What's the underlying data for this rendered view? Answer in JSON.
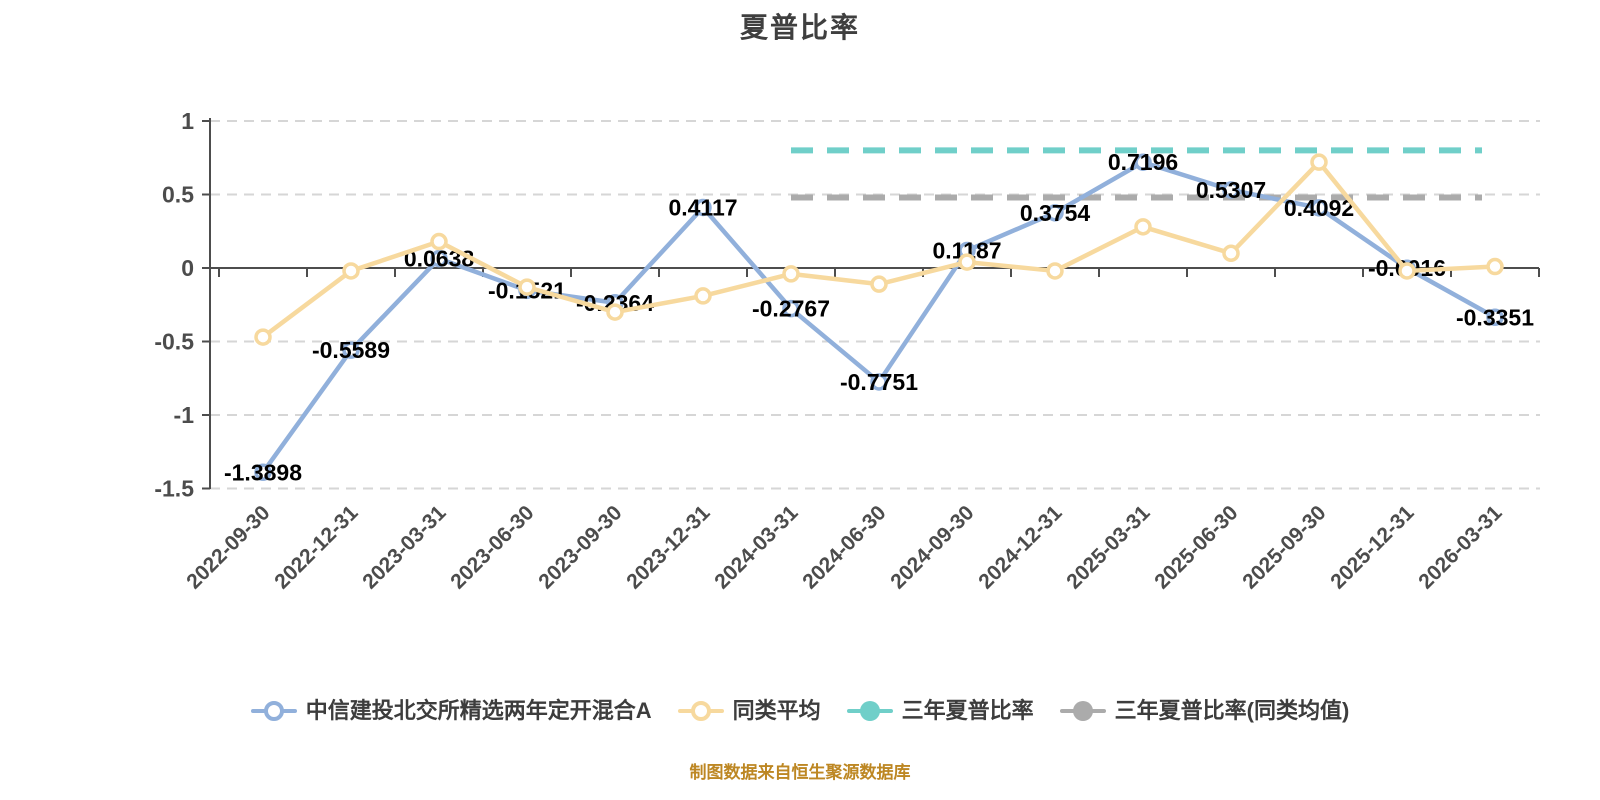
{
  "title": "夏普比率",
  "footer": "制图数据来自恒生聚源数据库",
  "colors": {
    "fund_line": "#91b0db",
    "peer_line": "#f7d99e",
    "three_year_line": "#70cfc9",
    "three_year_peer_line": "#ababab",
    "grid": "#d6d6d6",
    "axis": "#4d4d4d",
    "tick_label": "#4c4c4c",
    "data_label": "#000000",
    "title_text": "#3f3f3f",
    "footer_text": "#bd8723"
  },
  "chart_data": {
    "type": "line",
    "title": "夏普比率",
    "categories": [
      "2022-09-30",
      "2022-12-31",
      "2023-03-31",
      "2023-06-30",
      "2023-09-30",
      "2023-12-31",
      "2024-03-31",
      "2024-06-30",
      "2024-09-30",
      "2024-12-31",
      "2025-03-31",
      "2025-06-30",
      "2025-09-30",
      "2025-12-31",
      "2026-03-31"
    ],
    "series": [
      {
        "name": "中信建投北交所精选两年定开混合A",
        "color": "#91b0db",
        "marker": "ring",
        "labeled": true,
        "values": [
          -1.3898,
          -0.5589,
          0.0638,
          -0.1521,
          -0.2364,
          0.4117,
          -0.2767,
          -0.7751,
          0.1187,
          0.3754,
          0.7196,
          0.5307,
          0.4092,
          -0.0016,
          -0.3351
        ]
      },
      {
        "name": "同类平均",
        "color": "#f7d99e",
        "marker": "ring",
        "labeled": false,
        "values": [
          -0.47,
          -0.02,
          0.18,
          -0.13,
          -0.3,
          -0.19,
          -0.04,
          -0.11,
          0.04,
          -0.02,
          0.28,
          0.1,
          0.72,
          -0.02,
          0.01
        ]
      }
    ],
    "reference_lines": [
      {
        "name": "三年夏普比率",
        "color": "#70cfc9",
        "value": 0.8,
        "from_category": "2024-03-31",
        "to_category": "2026-03-31"
      },
      {
        "name": "三年夏普比率(同类均值)",
        "color": "#ababab",
        "value": 0.48,
        "from_category": "2024-03-31",
        "to_category": "2026-03-31"
      }
    ],
    "ylim": [
      -1.5,
      1
    ],
    "yticks": [
      1,
      0.5,
      0,
      -0.5,
      -1,
      -1.5
    ],
    "grid": "horizontal-dashed",
    "legend_position": "bottom",
    "xlabel": "",
    "ylabel": ""
  },
  "legend": {
    "items": [
      {
        "label": "中信建投北交所精选两年定开混合A",
        "color": "#91b0db",
        "marker": "ring-line"
      },
      {
        "label": "同类平均",
        "color": "#f7d99e",
        "marker": "ring-line"
      },
      {
        "label": "三年夏普比率",
        "color": "#70cfc9",
        "marker": "dot-line"
      },
      {
        "label": "三年夏普比率(同类均值)",
        "color": "#ababab",
        "marker": "dot-line"
      }
    ]
  }
}
